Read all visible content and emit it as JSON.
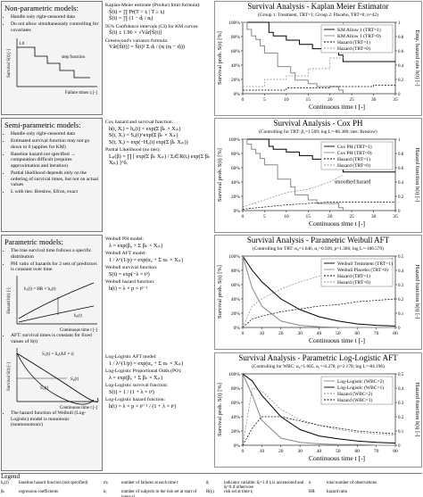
{
  "nonparametric": {
    "title": "Non-parametric models:",
    "bullets": [
      "Handle only right-censored data",
      "Do not allow simultaneously controlling for covariates"
    ],
    "figure": {
      "ylabel": "Survival S(t) [-]",
      "tick": "1.0",
      "annotation": "step function",
      "xlabel": "Failure times tⱼ [-]"
    }
  },
  "semiparametric": {
    "title": "Semi-parametric models:",
    "bullets": [
      "Handle only right-censored data",
      "Estimated survival function may not go down to 0 (applies for KM)",
      "Baseline hazard not specified → computation difficult (requires approximation and iteration)",
      "Partial likelihood depends only on the ordering of survival times, but not on actual values",
      "L with ties: Breslow, Efron, exact"
    ]
  },
  "parametric": {
    "title": "Parametric models:",
    "bullets": [
      "The true survival time follows a specific distribution",
      "PH: ratio of hazards for 2 sets of predictors is constant over time"
    ],
    "hazard_figure": {
      "ylabel": "Hazard h(t) [-]",
      "h1": "h₁(t) = HR × h₀(t)",
      "h0": "h₀(t)",
      "xlabel": "Continuous time t [-]"
    },
    "aft_bullet": "AFT: survival times is constant for fixed values of S(t)",
    "aft_figure": {
      "ylabel": "Survival S(t) [-]",
      "relation": "S₁(t) = S₀(AF × t)",
      "s1": "S₁(t)",
      "s0": "S₀(t)",
      "xlabel": "Continuous time t [-]"
    },
    "closing_bullet": "The hazard function of Weibull (Log-Logistic) model is monotonic (nonmonotonic)"
  },
  "formulas": [
    [
      {
        "label": "Kaplan-Meier estimate (Product limit formula):",
        "formulas": [
          "Ŝ(t) = ∏ Pr(T > tⱼ | T ≥ tⱼ)",
          "Ŝ(t) = ∏ (1 − dⱼ / nⱼ)"
        ]
      },
      {
        "label": "95% Confidence intervals (CI) for KM curves:",
        "formulas": [
          "Ŝ(t) ± 1.96 × √Vâr[Ŝ(t)]"
        ]
      },
      {
        "label": "Greenwood's variance formula:",
        "formulas": [
          "Vâr[Ŝ(t)] = Ŝ(t)² Σ dⱼ / (nⱼ (nⱼ − dⱼ))"
        ]
      }
    ],
    [
      {
        "label": "Cox hazard and survival function:",
        "formulas": [
          "h(t, Xᵢ) = h₀(t) × exp(Σ βₖ × Xᵢₖ)",
          "S(t, Xᵢ) = S₀(t)^exp(Σ βₖ × Xᵢₖ)",
          "S(t, Xᵢ) = exp(−H₀(t) exp(Σ βₖ Xᵢₖ))"
        ]
      },
      {
        "label": "Partial Likelihood (no ties):",
        "formulas": [
          "Lₚ(β) = ∏ [ exp(Σ βₖ Xᵢₖ) / Σⱼ∈R(tᵢ) exp(Σ βₖ Xⱼₖ) ]^δᵢ"
        ]
      }
    ],
    [
      {
        "label": "Weibull PH model:",
        "formulas": [
          "λ = exp(β₀ + Σ βₖ × Xᵢₖ)"
        ]
      },
      {
        "label": "Weibull AFT model:",
        "formulas": [
          "1 / λ^(1/p) = exp(α₀ + Σ αₖ × Xᵢₖ)"
        ]
      },
      {
        "label": "Weibull survival function:",
        "formulas": [
          "S(t) = exp(−λ × tᵖ)"
        ]
      },
      {
        "label": "Weibull hazard function:",
        "formulas": [
          "h(t) = λ × p × tᵖ⁻¹"
        ]
      }
    ],
    [
      {
        "label": "Log-Logistic AFT model:",
        "formulas": [
          "1 / λ^(1/p) = exp(α₀ + Σ αₖ × Xᵢₖ)"
        ]
      },
      {
        "label": "Log-Logistic Proportional Odds (PO):",
        "formulas": [
          "λ = exp(β₀ + Σ βₖ × Xᵢₖ)"
        ]
      },
      {
        "label": "Log-Logistic survival function:",
        "formulas": [
          "S(t) = 1 / (1 + λ × tᵖ)"
        ]
      },
      {
        "label": "Log-Logistic hazard function:",
        "formulas": [
          "h(t) = λ × p × tᵖ⁻¹ / (1 + λ × tᵖ)"
        ]
      }
    ]
  ],
  "chart_data": [
    {
      "type": "line",
      "title": "Survival Analysis - Kaplan Meier Estimator",
      "subtitle": "(Group 1: Treatment, TRT=1; Group 2: Placebo, TRT=0; n=42)",
      "ylabel": "Survival prob. S(t) [%]",
      "y2label": "Emp. hazard rate h(t) [-]",
      "xlabel": "Continuous time t [-]",
      "xlim": [
        0,
        35
      ],
      "xticks": [
        0,
        5,
        10,
        15,
        20,
        25,
        30,
        35
      ],
      "ylim": [
        0,
        100
      ],
      "yticks": [
        {
          "value": 0,
          "label": "0%"
        },
        {
          "value": 20,
          "label": "20%"
        },
        {
          "value": 40,
          "label": "40%"
        },
        {
          "value": 60,
          "label": "60%"
        },
        {
          "value": 80,
          "label": "80%"
        },
        {
          "value": 100,
          "label": "100%"
        }
      ],
      "y2lim": [
        0,
        1
      ],
      "y2ticks": [
        0,
        0.2,
        0.4,
        0.6,
        0.8,
        1
      ],
      "legend": "upper right",
      "series": [
        {
          "name": "KM Allow 1 (TRT=1)",
          "color": "#000000",
          "style": "solid",
          "drawstyle": "steps",
          "x": [
            0,
            6,
            7,
            10,
            13,
            16,
            22,
            23,
            35
          ],
          "values": [
            100,
            86,
            81,
            75,
            69,
            63,
            54,
            45,
            45
          ]
        },
        {
          "name": "KM Allow 1 (TRT=0)",
          "color": "#888888",
          "style": "solid",
          "drawstyle": "steps",
          "x": [
            0,
            1,
            2,
            3,
            4,
            5,
            8,
            11,
            12,
            15,
            17,
            22,
            23
          ],
          "values": [
            100,
            90,
            81,
            76,
            67,
            57,
            38,
            29,
            19,
            14,
            10,
            5,
            0
          ]
        },
        {
          "name": "Hazard (TRT=1)",
          "color": "#000000",
          "style": "dashed",
          "drawstyle": "steps",
          "axis": "y2",
          "x": [
            0,
            10,
            20,
            30,
            35
          ],
          "values": [
            0.05,
            0.08,
            0.1,
            0.12,
            0.12
          ]
        },
        {
          "name": "Hazard (TRT=0)",
          "color": "#888888",
          "style": "dashed",
          "drawstyle": "steps",
          "axis": "y2",
          "x": [
            0,
            5,
            10,
            15,
            20,
            23
          ],
          "values": [
            0.1,
            0.2,
            0.25,
            0.35,
            0.5,
            1
          ]
        }
      ]
    },
    {
      "type": "line",
      "title": "Survival Analysis - Cox PH",
      "subtitle": "(Controlling for TRT: β₁=1.509; log L=-86.380; ties: Breslow)",
      "ylabel": "Survival prob. S(t) [%]",
      "y2label": "Hazard function h(t) [-]",
      "xlabel": "Continuous time t [-]",
      "xlim": [
        0,
        35
      ],
      "xticks": [
        0,
        5,
        10,
        15,
        20,
        25,
        30,
        35
      ],
      "ylim": [
        0,
        100
      ],
      "yticks": [
        {
          "value": 0,
          "label": "0%"
        },
        {
          "value": 20,
          "label": "20%"
        },
        {
          "value": 40,
          "label": "40%"
        },
        {
          "value": 60,
          "label": "60%"
        },
        {
          "value": 80,
          "label": "80%"
        },
        {
          "value": 100,
          "label": "100%"
        }
      ],
      "y2lim": [
        0,
        1
      ],
      "y2ticks": [
        0,
        0.2,
        0.4,
        0.6,
        0.8,
        1
      ],
      "legend": "upper right",
      "annotations": [
        "smoothed hazard"
      ],
      "series": [
        {
          "name": "Cox PH (TRT=1)",
          "color": "#000000",
          "style": "solid",
          "drawstyle": "steps",
          "x": [
            0,
            6,
            7,
            10,
            13,
            16,
            22,
            23,
            35
          ],
          "values": [
            100,
            90,
            86,
            82,
            77,
            72,
            63,
            54,
            54
          ]
        },
        {
          "name": "Cox PH (TRT=0)",
          "color": "#888888",
          "style": "solid",
          "drawstyle": "steps",
          "x": [
            0,
            1,
            2,
            3,
            4,
            5,
            8,
            11,
            12,
            15,
            17,
            22,
            23
          ],
          "values": [
            100,
            93,
            86,
            80,
            73,
            64,
            44,
            33,
            22,
            15,
            10,
            4,
            0
          ]
        },
        {
          "name": "Hazard (TRT=1)",
          "color": "#000000",
          "style": "dashed",
          "axis": "y2",
          "x": [
            0,
            5,
            10,
            15,
            20,
            35
          ],
          "values": [
            0.02,
            0.05,
            0.08,
            0.1,
            0.12,
            0.12
          ]
        },
        {
          "name": "Hazard (TRT=0)",
          "color": "#888888",
          "style": "dashed",
          "axis": "y2",
          "x": [
            0,
            5,
            10,
            15,
            20,
            23
          ],
          "values": [
            0.05,
            0.15,
            0.25,
            0.3,
            0.4,
            0.5
          ]
        }
      ]
    },
    {
      "type": "line",
      "title": "Survival Analysis - Parametric Weibull AFT",
      "subtitle": "(Controlling for TRT: α₀=1.646, α₁=0.928, p=1.366; log L=-106.579)",
      "ylabel": "Survival prob. S(t) [%]",
      "y2label": "Hazard function h(t) [-]",
      "xlabel": "Continuous time t [-]",
      "x": [
        0,
        5,
        10,
        20,
        30,
        40,
        50,
        60,
        70,
        80
      ],
      "xlim": [
        0,
        80
      ],
      "xticks": [
        0,
        10,
        20,
        30,
        40,
        50,
        60,
        70,
        80
      ],
      "ylim": [
        0,
        100
      ],
      "yticks": [
        {
          "value": 0,
          "label": "0%"
        },
        {
          "value": 20,
          "label": "20%"
        },
        {
          "value": 40,
          "label": "40%"
        },
        {
          "value": 60,
          "label": "60%"
        },
        {
          "value": 80,
          "label": "80%"
        },
        {
          "value": 100,
          "label": "100%"
        }
      ],
      "y2lim": [
        0,
        0.5
      ],
      "y2ticks": [
        0,
        0.1,
        0.2,
        0.3,
        0.4,
        0.5
      ],
      "legend": "upper right",
      "series": [
        {
          "name": "Weibull Treatment (TRT=1)",
          "color": "#000000",
          "style": "solid",
          "values": [
            100,
            80,
            64,
            40,
            25,
            15,
            9,
            5,
            3,
            2
          ]
        },
        {
          "name": "Weibull Placebo (TRT=0)",
          "color": "#888888",
          "style": "solid",
          "values": [
            100,
            55,
            30,
            9,
            3,
            1,
            0,
            0,
            0,
            0
          ]
        },
        {
          "name": "Hazard (TRT=1)",
          "color": "#000000",
          "style": "dashed",
          "axis": "y2",
          "values": [
            0,
            0.06,
            0.08,
            0.11,
            0.13,
            0.15,
            0.16,
            0.18,
            0.19,
            0.2
          ]
        },
        {
          "name": "Hazard (TRT=0)",
          "color": "#888888",
          "style": "dashed",
          "axis": "y2",
          "values": [
            0,
            0.15,
            0.2,
            0.27,
            0.32,
            0.36,
            0.4,
            0.43,
            0.46,
            0.49
          ]
        }
      ]
    },
    {
      "type": "line",
      "title": "Survival Analysis - Parametric Log-Logistic AFT",
      "subtitle": "(Controlling for WBC: α₀=1.605, α₁=-0.278, p=2.178; log L=-84.196)",
      "ylabel": "Survival prob. S(t) [%]",
      "y2label": "Hazard function h(t) [-]",
      "xlabel": "Continuous time t [-]",
      "x": [
        0,
        5,
        10,
        20,
        30,
        40,
        50,
        60,
        70,
        80
      ],
      "xlim": [
        0,
        80
      ],
      "xticks": [
        0,
        10,
        20,
        30,
        40,
        50,
        60,
        70,
        80
      ],
      "ylim": [
        0,
        100
      ],
      "yticks": [
        {
          "value": 0,
          "label": "0%"
        },
        {
          "value": 20,
          "label": "20%"
        },
        {
          "value": 40,
          "label": "40%"
        },
        {
          "value": 60,
          "label": "60%"
        },
        {
          "value": 80,
          "label": "80%"
        },
        {
          "value": 100,
          "label": "100%"
        }
      ],
      "y2lim": [
        0,
        0.5
      ],
      "y2ticks": [
        0,
        0.1,
        0.2,
        0.3,
        0.4,
        0.5
      ],
      "legend": "upper right",
      "series": [
        {
          "name": "Log-Logistic (WBC=2)",
          "color": "#888888",
          "style": "solid",
          "values": [
            100,
            70,
            35,
            10,
            4,
            2,
            1,
            1,
            0,
            0
          ]
        },
        {
          "name": "Log-Logistic (WBC=1)",
          "color": "#000000",
          "style": "solid",
          "values": [
            100,
            90,
            70,
            40,
            22,
            13,
            9,
            6,
            4,
            3
          ]
        },
        {
          "name": "Hazard (WBC=2)",
          "color": "#888888",
          "style": "dashed",
          "axis": "y2",
          "values": [
            0,
            0.4,
            0.38,
            0.25,
            0.18,
            0.14,
            0.11,
            0.09,
            0.08,
            0.07
          ]
        },
        {
          "name": "Hazard (WBC=1)",
          "color": "#000000",
          "style": "dashed",
          "axis": "y2",
          "values": [
            0,
            0.12,
            0.2,
            0.2,
            0.17,
            0.14,
            0.12,
            0.1,
            0.09,
            0.08
          ]
        }
      ]
    }
  ],
  "legend": {
    "title": "Legend",
    "entries": [
      {
        "symbol": "h₀(t)",
        "text": "baseline hazard function (not specified)"
      },
      {
        "symbol": "mⱼ",
        "text": "number of failures at each time t"
      },
      {
        "symbol": "δⱼ",
        "text": "indicator variable: δⱼ=1 if tⱼ is uncensored and δⱼ=0 if otherwise"
      },
      {
        "symbol": "n",
        "text": "total number of observations"
      },
      {
        "symbol": "βₖ",
        "text": "regression coefficients"
      },
      {
        "symbol": "nⱼ",
        "text": "number of subjects in the risk set at start of interval"
      },
      {
        "symbol": "R(tⱼ)",
        "text": "risk set at time tⱼ"
      },
      {
        "symbol": "HR",
        "text": "hazard ratio"
      },
      {
        "symbol": "Xᵢ",
        "text": "vector of k covariates"
      },
      {
        "symbol": "Ĥ(t)",
        "text": "cumulative hazard"
      },
      {
        "symbol": "p",
        "text": "shape parameter"
      },
      {
        "symbol": "AF",
        "text": "acceleration factor"
      }
    ]
  }
}
